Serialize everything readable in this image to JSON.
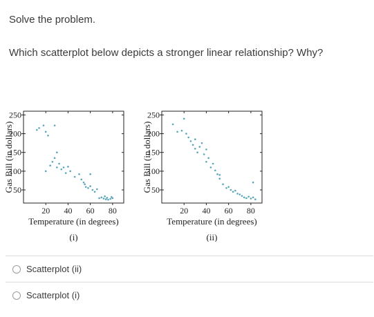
{
  "instruction": "Solve the problem.",
  "question": "Which scatterplot below depicts a stronger linear relationship? Why?",
  "colors": {
    "point": "#5aa6b8",
    "text": "#3a3a3a",
    "divider": "#dcdcdc"
  },
  "chart_data": [
    {
      "type": "scatter",
      "caption": "(i)",
      "xlabel": "Temperature (in degrees)",
      "ylabel": "Gas Bill (in dollars)",
      "xticks": [
        20,
        40,
        60,
        80
      ],
      "yticks": [
        50,
        100,
        150,
        200,
        250
      ],
      "xlim": [
        0,
        90
      ],
      "ylim": [
        15,
        260
      ],
      "points": [
        [
          12,
          210
        ],
        [
          14,
          215
        ],
        [
          18,
          222
        ],
        [
          20,
          205
        ],
        [
          22,
          195
        ],
        [
          28,
          222
        ],
        [
          20,
          100
        ],
        [
          24,
          115
        ],
        [
          26,
          125
        ],
        [
          28,
          135
        ],
        [
          30,
          150
        ],
        [
          30,
          110
        ],
        [
          32,
          120
        ],
        [
          34,
          105
        ],
        [
          36,
          110
        ],
        [
          38,
          95
        ],
        [
          40,
          112
        ],
        [
          42,
          100
        ],
        [
          46,
          85
        ],
        [
          50,
          92
        ],
        [
          52,
          78
        ],
        [
          54,
          70
        ],
        [
          55,
          65
        ],
        [
          56,
          58
        ],
        [
          58,
          55
        ],
        [
          60,
          60
        ],
        [
          62,
          50
        ],
        [
          64,
          45
        ],
        [
          66,
          52
        ],
        [
          60,
          92
        ],
        [
          68,
          28
        ],
        [
          70,
          30
        ],
        [
          72,
          27
        ],
        [
          74,
          25
        ],
        [
          75,
          29
        ],
        [
          76,
          24
        ],
        [
          78,
          26
        ],
        [
          80,
          28
        ],
        [
          79,
          31
        ],
        [
          73,
          33
        ]
      ]
    },
    {
      "type": "scatter",
      "caption": "(ii)",
      "xlabel": "Temperature (in degrees)",
      "ylabel": "Gas Bill (in dollars)",
      "xticks": [
        20,
        40,
        60,
        80
      ],
      "yticks": [
        50,
        100,
        150,
        200,
        250
      ],
      "xlim": [
        0,
        90
      ],
      "ylim": [
        15,
        260
      ],
      "points": [
        [
          10,
          225
        ],
        [
          14,
          205
        ],
        [
          18,
          208
        ],
        [
          20,
          240
        ],
        [
          22,
          200
        ],
        [
          24,
          190
        ],
        [
          26,
          180
        ],
        [
          28,
          170
        ],
        [
          30,
          160
        ],
        [
          30,
          185
        ],
        [
          32,
          150
        ],
        [
          34,
          165
        ],
        [
          38,
          145
        ],
        [
          40,
          125
        ],
        [
          42,
          135
        ],
        [
          44,
          110
        ],
        [
          46,
          120
        ],
        [
          48,
          102
        ],
        [
          50,
          92
        ],
        [
          52,
          80
        ],
        [
          52,
          90
        ],
        [
          55,
          65
        ],
        [
          58,
          55
        ],
        [
          60,
          58
        ],
        [
          62,
          50
        ],
        [
          64,
          45
        ],
        [
          66,
          48
        ],
        [
          68,
          40
        ],
        [
          70,
          38
        ],
        [
          72,
          34
        ],
        [
          74,
          30
        ],
        [
          76,
          28
        ],
        [
          78,
          32
        ],
        [
          80,
          27
        ],
        [
          82,
          30
        ],
        [
          84,
          25
        ],
        [
          40,
          158
        ],
        [
          36,
          175
        ],
        [
          82,
          70
        ]
      ]
    }
  ],
  "options": [
    {
      "label": "Scatterplot (ii)"
    },
    {
      "label": "Scatterplot (i)"
    }
  ]
}
